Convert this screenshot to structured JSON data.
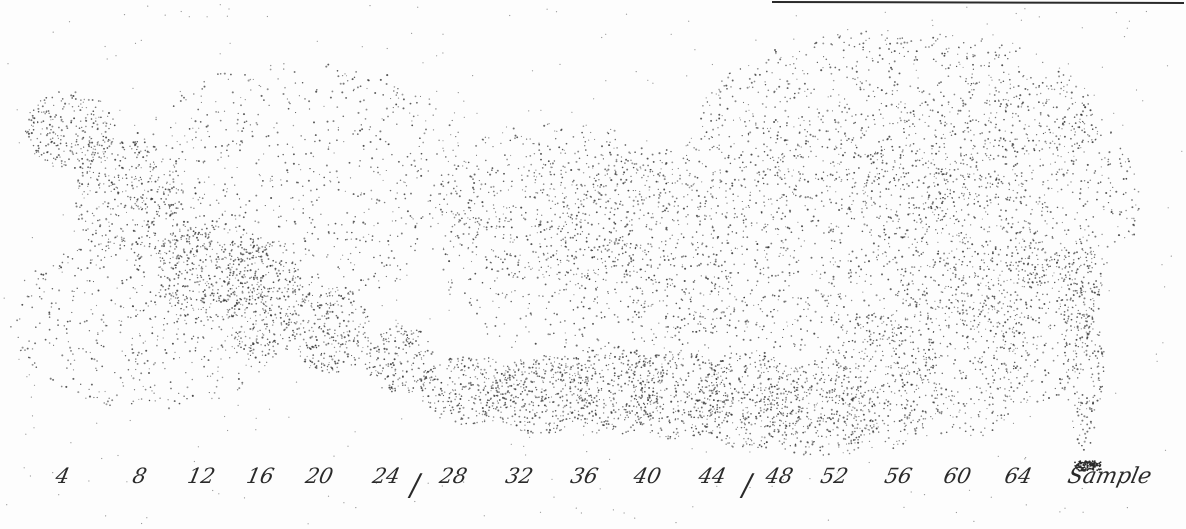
{
  "lanes": {
    "labels": [
      "4",
      "8",
      "12",
      "16",
      "20",
      "24",
      "28",
      "32",
      "36",
      "40",
      "44",
      "48",
      "52",
      "56",
      "60",
      "64"
    ],
    "sample_label": "Sample",
    "separator_glyph": "/"
  },
  "colors": {
    "ink": "#2a2a2a",
    "paper": "#fdfdfd"
  }
}
